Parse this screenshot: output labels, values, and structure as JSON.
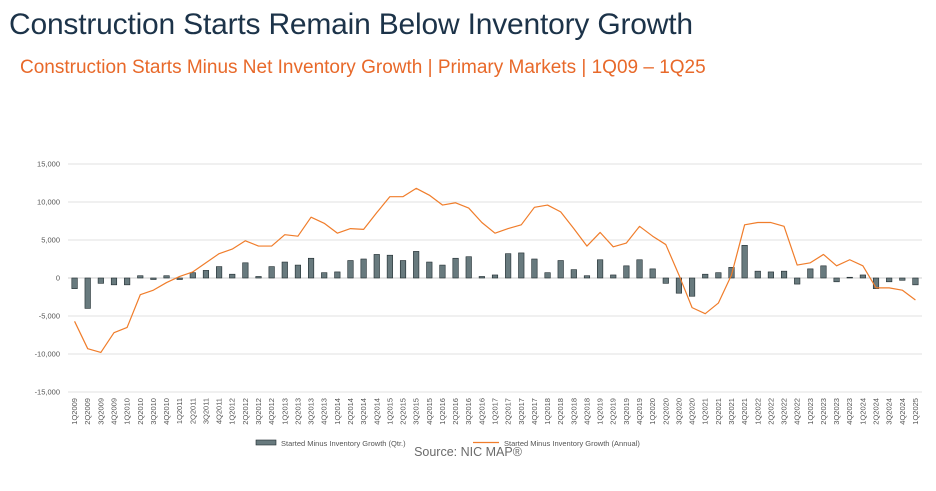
{
  "title": "Construction Starts Remain Below Inventory Growth",
  "subtitle": "Construction Starts Minus Net Inventory Growth | Primary Markets | 1Q09 – 1Q25",
  "source": "Source: NIC MAP®",
  "colors": {
    "bar_fill": "#687a7e",
    "bar_stroke": "#1e2a2e",
    "line": "#f07d2b",
    "gridline": "#d9d9d9",
    "axis": "#bfbfbf"
  },
  "chart_data": {
    "type": "bar",
    "grid": true,
    "legend_position": "bottom",
    "ylim": [
      -15000,
      15000
    ],
    "yticks": [
      15000,
      10000,
      5000,
      0,
      -5000,
      -10000,
      -15000
    ],
    "ytick_labels": [
      "15,000",
      "10,000",
      "5,000",
      "0",
      "-5,000",
      "-10,000",
      "-15,000"
    ],
    "categories": [
      "1Q2009",
      "2Q2009",
      "3Q2009",
      "4Q2009",
      "1Q2010",
      "2Q2010",
      "3Q2010",
      "4Q2010",
      "1Q2011",
      "2Q2011",
      "3Q2011",
      "4Q2011",
      "1Q2012",
      "2Q2012",
      "3Q2012",
      "4Q2012",
      "1Q2013",
      "2Q2013",
      "3Q2013",
      "4Q2013",
      "1Q2014",
      "2Q2014",
      "3Q2014",
      "4Q2014",
      "1Q2015",
      "2Q2015",
      "3Q2015",
      "4Q2015",
      "1Q2016",
      "2Q2016",
      "3Q2016",
      "4Q2016",
      "1Q2017",
      "2Q2017",
      "3Q2017",
      "4Q2017",
      "1Q2018",
      "2Q2018",
      "3Q2018",
      "4Q2018",
      "1Q2019",
      "2Q2019",
      "3Q2019",
      "4Q2019",
      "1Q2020",
      "2Q2020",
      "3Q2020",
      "4Q2020",
      "1Q2021",
      "2Q2021",
      "3Q2021",
      "4Q2021",
      "1Q2022",
      "2Q2022",
      "3Q2022",
      "4Q2022",
      "1Q2023",
      "2Q2023",
      "3Q2023",
      "4Q2023",
      "1Q2024",
      "2Q2024",
      "3Q2024",
      "4Q2024",
      "1Q2025"
    ],
    "x_tick_labels": [
      "1Q2009",
      "2Q2009",
      "3Q2009",
      "4Q2009",
      "1Q2010",
      "2Q2010",
      "3Q2010",
      "4Q2010",
      "1Q2011",
      "2Q2011",
      "3Q2011",
      "4Q2011",
      "1Q2012",
      "2Q2012",
      "3Q2012",
      "4Q2012",
      "1Q2013",
      "2Q2013",
      "3Q2013",
      "4Q2013",
      "1Q2014",
      "2Q2014",
      "3Q2014",
      "4Q2014",
      "1Q2015",
      "2Q2015",
      "3Q2015",
      "4Q2015",
      "1Q2016",
      "2Q2016",
      "3Q2016",
      "4Q2016",
      "1Q2017",
      "2Q2017",
      "3Q2017",
      "4Q2017",
      "1Q2018",
      "2Q2018",
      "3Q2018",
      "4Q2018",
      "1Q2019",
      "2Q2019",
      "3Q2019",
      "4Q2019",
      "1Q2020",
      "2Q2020",
      "3Q2020",
      "4Q2020",
      "1Q2021",
      "2Q2021",
      "3Q2021",
      "4Q2021",
      "1Q2022",
      "2Q2022",
      "3Q2022",
      "4Q2022",
      "1Q2023",
      "2Q2023",
      "3Q2023",
      "4Q2023",
      "1Q2024",
      "2Q2024",
      "3Q2024",
      "4Q2024",
      "1Q2025"
    ],
    "series": [
      {
        "name": "Started Minus Inventory Growth (Qtr.)",
        "type": "bar",
        "values": [
          -1400,
          -4000,
          -700,
          -900,
          -900,
          300,
          -200,
          300,
          -200,
          700,
          1000,
          1500,
          500,
          2000,
          200,
          1500,
          2100,
          1700,
          2600,
          700,
          800,
          2300,
          2500,
          3100,
          3000,
          2300,
          3500,
          2100,
          1700,
          2600,
          2800,
          200,
          400,
          3200,
          3300,
          2500,
          700,
          2300,
          1100,
          300,
          2400,
          400,
          1600,
          2400,
          1200,
          -700,
          -2000,
          -2400,
          500,
          700,
          1400,
          4300,
          900,
          800,
          900,
          -800,
          1200,
          1600,
          -500,
          100,
          400,
          -1400,
          -500,
          -300,
          -900
        ]
      },
      {
        "name": "Started Minus Inventory Growth (Annual)",
        "type": "line",
        "values": [
          -5700,
          -9300,
          -9800,
          -7200,
          -6500,
          -2200,
          -1600,
          -600,
          200,
          800,
          2000,
          3200,
          3800,
          4900,
          4200,
          4200,
          5700,
          5500,
          8000,
          7200,
          5900,
          6500,
          6400,
          8600,
          10700,
          10700,
          11800,
          10900,
          9600,
          9900,
          9200,
          7300,
          5900,
          6500,
          7000,
          9300,
          9600,
          8700,
          6500,
          4200,
          6000,
          4100,
          4600,
          6800,
          5500,
          4400,
          400,
          -3900,
          -4700,
          -3300,
          400,
          7000,
          7300,
          7300,
          6800,
          1700,
          2000,
          3100,
          1600,
          2400,
          1600,
          -1300,
          -1300,
          -1600,
          -2900
        ]
      }
    ]
  }
}
